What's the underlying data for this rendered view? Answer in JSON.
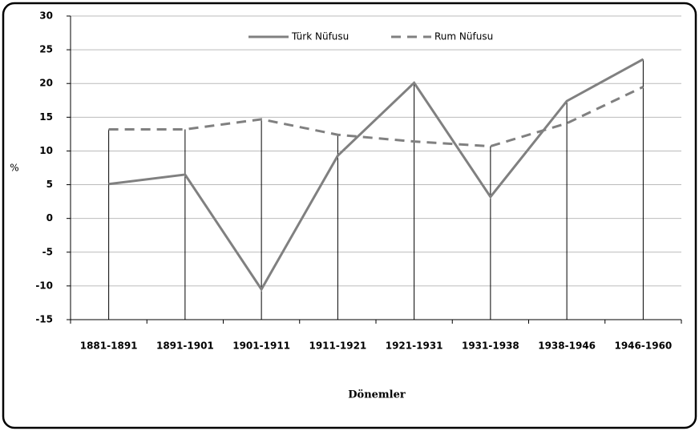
{
  "chart_data": {
    "type": "line",
    "categories": [
      "1881-1891",
      "1891-1901",
      "1901-1911",
      "1911-1921",
      "1921-1931",
      "1931-1938",
      "1938-1946",
      "1946-1960"
    ],
    "series": [
      {
        "name": "Türk Nüfusu",
        "color": "#808080",
        "dash": false,
        "values": [
          5.1,
          6.5,
          -10.5,
          9.3,
          20.1,
          3.2,
          17.4,
          23.6
        ]
      },
      {
        "name": "Rum Nüfusu",
        "color": "#808080",
        "dash": true,
        "values": [
          13.2,
          13.2,
          14.7,
          12.4,
          11.4,
          10.7,
          14.1,
          19.5
        ]
      }
    ],
    "ylabel": "%",
    "xlabel": "Dönemler",
    "ylim": [
      -15,
      30
    ],
    "yticks": [
      -15,
      -10,
      -5,
      0,
      5,
      10,
      15,
      20,
      25,
      30
    ],
    "grid": true,
    "drop_lines": true,
    "legend": "top"
  }
}
